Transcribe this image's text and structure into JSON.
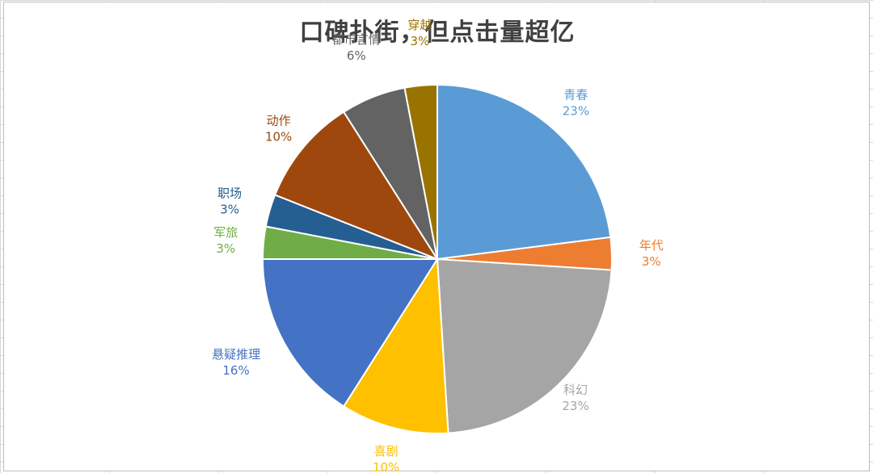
{
  "chart_data": {
    "type": "pie",
    "title": "口碑扑街，但点击量超亿",
    "slices": [
      {
        "label": "青春",
        "value": 23,
        "value_label": "23%",
        "color": "#5B9BD5"
      },
      {
        "label": "年代",
        "value": 3,
        "value_label": "3%",
        "color": "#ED7D31"
      },
      {
        "label": "科幻",
        "value": 23,
        "value_label": "23%",
        "color": "#A5A5A5"
      },
      {
        "label": "喜剧",
        "value": 10,
        "value_label": "10%",
        "color": "#FFC000"
      },
      {
        "label": "悬疑推理",
        "value": 16,
        "value_label": "16%",
        "color": "#4472C4"
      },
      {
        "label": "军旅",
        "value": 3,
        "value_label": "3%",
        "color": "#70AD47"
      },
      {
        "label": "职场",
        "value": 3,
        "value_label": "3%",
        "color": "#255E91"
      },
      {
        "label": "动作",
        "value": 10,
        "value_label": "10%",
        "color": "#9E480E"
      },
      {
        "label": "都市言情",
        "value": 6,
        "value_label": "6%",
        "color": "#636363"
      },
      {
        "label": "穿越",
        "value": 3,
        "value_label": "3%",
        "color": "#997300"
      }
    ],
    "start": "12 o'clock",
    "direction": "clockwise",
    "data_labels": "outside"
  }
}
